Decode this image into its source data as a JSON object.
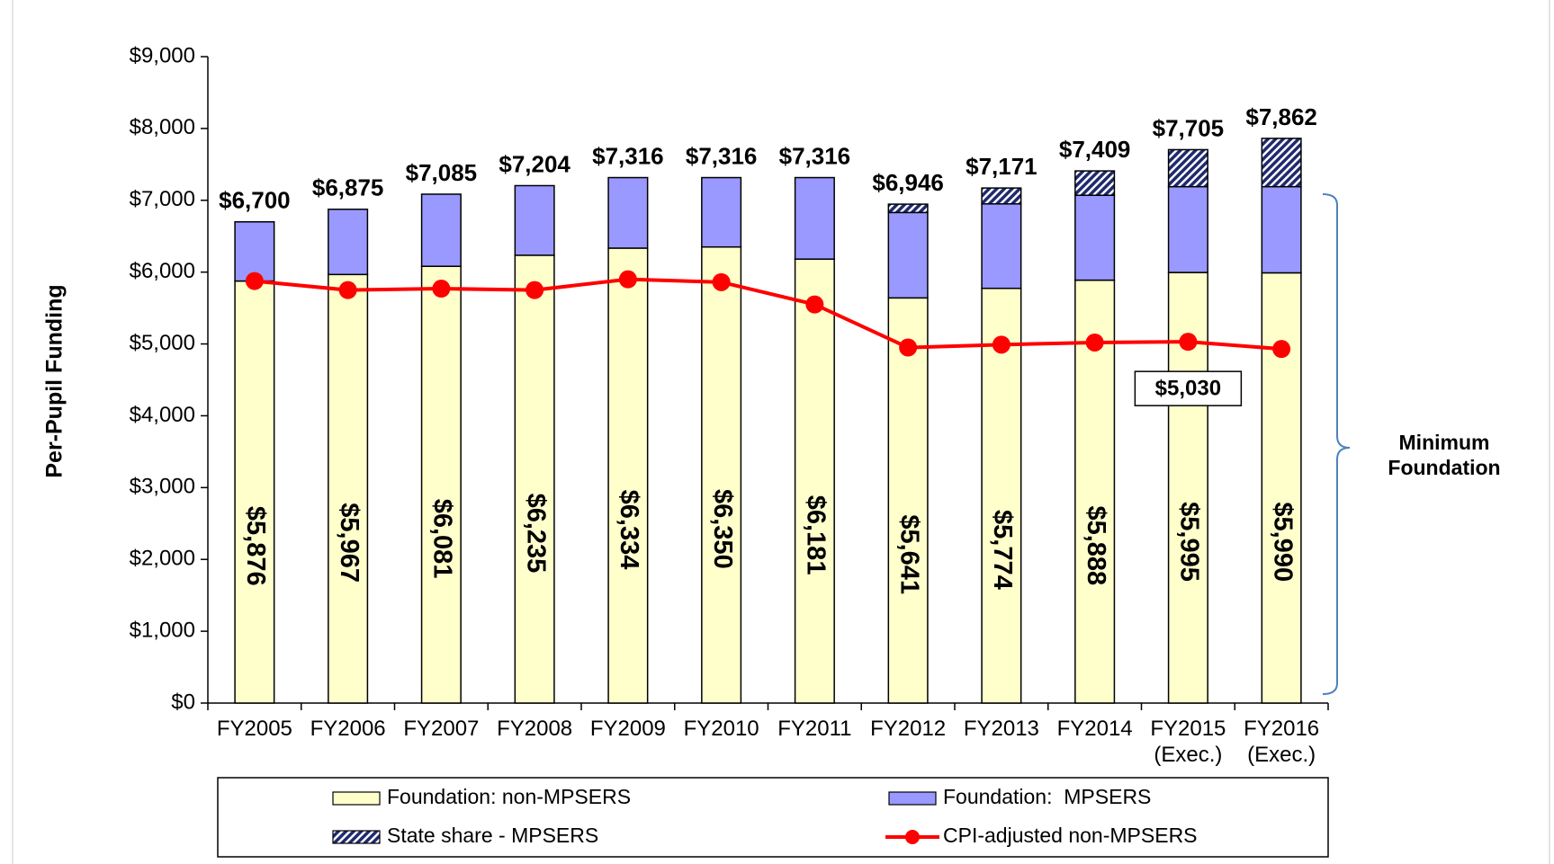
{
  "chart_data": {
    "type": "stacked_bar_line",
    "y_label": "Per-Pupil Funding",
    "categories": [
      "FY2005",
      "FY2006",
      "FY2007",
      "FY2008",
      "FY2009",
      "FY2010",
      "FY2011",
      "FY2012",
      "FY2013",
      "FY2014",
      "FY2015\n(Exec.)",
      "FY2016\n(Exec.)"
    ],
    "series": [
      {
        "name": "Foundation: non-MPSERS",
        "color": "#ffffcc",
        "kind": "bar",
        "values": [
          5876,
          5967,
          6081,
          6235,
          6334,
          6350,
          6181,
          5641,
          5774,
          5888,
          5995,
          5990
        ],
        "value_labels": [
          "$5,876",
          "$5,967",
          "$6,081",
          "$6,235",
          "$6,334",
          "$6,350",
          "$6,181",
          "$5,641",
          "$5,774",
          "$5,888",
          "$5,995",
          "$5,990"
        ]
      },
      {
        "name": "Foundation:  MPSERS",
        "color": "#9999ff",
        "kind": "bar",
        "values": [
          824,
          908,
          1004,
          969,
          982,
          966,
          1135,
          1189,
          1176,
          1182,
          1195,
          1200
        ]
      },
      {
        "name": "State share - MPSERS",
        "color": "#1f2a6e",
        "kind": "bar",
        "hatch": true,
        "values": [
          0,
          0,
          0,
          0,
          0,
          0,
          0,
          116,
          221,
          339,
          515,
          672
        ]
      },
      {
        "name": "CPI-adjusted non-MPSERS",
        "color": "#ff0000",
        "kind": "line",
        "values": [
          5876,
          5750,
          5770,
          5750,
          5900,
          5860,
          5550,
          4950,
          4990,
          5020,
          5030,
          4930
        ],
        "value_labels": [
          null,
          null,
          null,
          null,
          null,
          null,
          null,
          null,
          null,
          null,
          "$5,030",
          null
        ]
      }
    ],
    "totals": [
      6700,
      6875,
      7085,
      7204,
      7316,
      7316,
      7316,
      6946,
      7171,
      7409,
      7705,
      7862
    ],
    "total_labels": [
      "$6,700",
      "$6,875",
      "$7,085",
      "$7,204",
      "$7,316",
      "$7,316",
      "$7,316",
      "$6,946",
      "$7,171",
      "$7,409",
      "$7,705",
      "$7,862"
    ],
    "ylim": [
      0,
      9000
    ],
    "yticks": [
      {
        "value": 0,
        "label": "$0"
      },
      {
        "value": 1000,
        "label": "$1,000"
      },
      {
        "value": 2000,
        "label": "$2,000"
      },
      {
        "value": 3000,
        "label": "$3,000"
      },
      {
        "value": 4000,
        "label": "$4,000"
      },
      {
        "value": 5000,
        "label": "$5,000"
      },
      {
        "value": 6000,
        "label": "$6,000"
      },
      {
        "value": 7000,
        "label": "$7,000"
      },
      {
        "value": 8000,
        "label": "$8,000"
      },
      {
        "value": 9000,
        "label": "$9,000"
      }
    ],
    "annotation": "Minimum\nFoundation",
    "grid": false
  }
}
